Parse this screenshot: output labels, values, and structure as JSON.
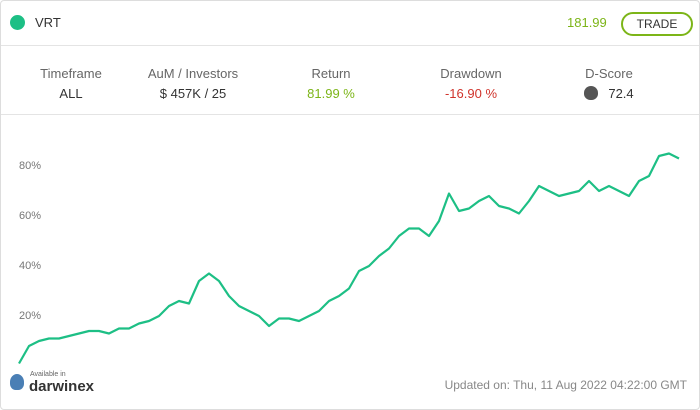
{
  "header": {
    "symbol": "VRT",
    "price": "181.99",
    "button": "TRADE"
  },
  "stats": [
    {
      "label": "Timeframe",
      "value": "ALL"
    },
    {
      "label": "AuM / Investors",
      "value": "$ 457K / 25"
    },
    {
      "label": "Return",
      "value": "81.99 %"
    },
    {
      "label": "Drawdown",
      "value": "-16.90 %"
    },
    {
      "label": "D-Score",
      "value": "72.4"
    }
  ],
  "chart_data": {
    "type": "line",
    "color": "#1dbf85",
    "values": [
      1,
      8,
      10,
      11,
      11,
      12,
      13,
      14,
      14,
      13,
      15,
      15,
      17,
      18,
      20,
      24,
      26,
      25,
      34,
      37,
      34,
      28,
      24,
      22,
      20,
      16,
      19,
      19,
      18,
      20,
      22,
      26,
      28,
      31,
      38,
      40,
      44,
      47,
      52,
      55,
      55,
      52,
      58,
      69,
      62,
      63,
      66,
      68,
      64,
      63,
      61,
      66,
      72,
      70,
      68,
      69,
      70,
      74,
      70,
      72,
      70,
      68,
      74,
      76,
      84,
      85,
      83
    ],
    "ylim": [
      0,
      95
    ],
    "yticks": [
      {
        "value": 20,
        "label": "20%"
      },
      {
        "value": 40,
        "label": "40%"
      },
      {
        "value": 60,
        "label": "60%"
      },
      {
        "value": 80,
        "label": "80%"
      }
    ]
  },
  "footer": {
    "available": "Available in",
    "brand": "darwinex",
    "updated": "Updated on: Thu, 11 Aug 2022 04:22:00 GMT"
  }
}
